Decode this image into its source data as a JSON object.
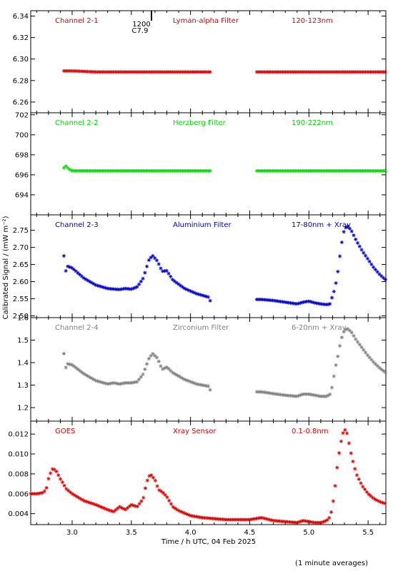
{
  "chart_data": {
    "type": "scatter",
    "xlabel": "Time / h UTC, 04 Feb 2025",
    "ylabel": "Calibrated Signal / (mW m⁻²)",
    "note": "(1 minute averages)",
    "xlim": [
      2.65,
      5.65
    ],
    "xticks": [
      3.0,
      3.5,
      4.0,
      4.5,
      5.0,
      5.5
    ],
    "xtick_labels": [
      "3.0",
      "3.5",
      "4.0",
      "4.5",
      "5.0",
      "5.5"
    ],
    "marker": "*",
    "flare_annotation": {
      "x": 3.67,
      "time": "1200",
      "class": "C7.9"
    },
    "panels": [
      {
        "channel": "Channel 2-1",
        "filter": "Lyman-alpha Filter",
        "band": "120-123nm",
        "color": "#dd0000",
        "ylim": [
          6.25,
          6.345
        ],
        "yticks": [
          6.26,
          6.28,
          6.3,
          6.32,
          6.34
        ],
        "ytick_labels": [
          "6.26",
          "6.28",
          "6.30",
          "6.32",
          "6.34"
        ],
        "segments": [
          {
            "x": [
              2.93,
              3.0,
              3.2,
              3.5,
              3.8,
              4.0,
              4.18
            ],
            "y": [
              6.289,
              6.289,
              6.288,
              6.288,
              6.288,
              6.288,
              6.288
            ]
          },
          {
            "x": [
              4.56,
              4.8,
              5.0,
              5.2,
              5.4,
              5.65
            ],
            "y": [
              6.288,
              6.288,
              6.288,
              6.288,
              6.288,
              6.288
            ]
          }
        ]
      },
      {
        "channel": "Channel 2-2",
        "filter": "Herzberg Filter",
        "band": "190-222nm",
        "color": "#00dd00",
        "ylim": [
          692.0,
          702.2
        ],
        "yticks": [
          694,
          696,
          698,
          700,
          702
        ],
        "ytick_labels": [
          "694",
          "696",
          "698",
          "700",
          "702"
        ],
        "segments": [
          {
            "x": [
              2.93,
              2.95,
              2.97,
              3.0,
              3.5,
              4.0,
              4.18
            ],
            "y": [
              696.7,
              696.9,
              696.6,
              696.4,
              696.4,
              696.4,
              696.4
            ]
          },
          {
            "x": [
              4.56,
              5.0,
              5.3,
              5.65
            ],
            "y": [
              696.4,
              696.4,
              696.4,
              696.4
            ]
          }
        ]
      },
      {
        "channel": "Channel 2-3",
        "filter": "Aluminium Filter",
        "band": "17-80nm + Xray",
        "color": "#0000cc",
        "ylim": [
          2.495,
          2.795
        ],
        "yticks": [
          2.5,
          2.55,
          2.6,
          2.65,
          2.7,
          2.75
        ],
        "ytick_labels": [
          "2.50",
          "2.55",
          "2.60",
          "2.65",
          "2.70",
          "2.75"
        ],
        "segments": [
          {
            "x": [
              2.93,
              2.94,
              2.96,
              3.0,
              3.1,
              3.2,
              3.3,
              3.36,
              3.4,
              3.45,
              3.5,
              3.55,
              3.6,
              3.65,
              3.68,
              3.72,
              3.76,
              3.8,
              3.85,
              3.95,
              4.05,
              4.15,
              4.18
            ],
            "y": [
              2.675,
              2.625,
              2.645,
              2.64,
              2.61,
              2.59,
              2.58,
              2.578,
              2.577,
              2.58,
              2.578,
              2.585,
              2.61,
              2.665,
              2.676,
              2.66,
              2.63,
              2.632,
              2.605,
              2.58,
              2.565,
              2.555,
              2.535
            ]
          },
          {
            "x": [
              4.56,
              4.6,
              4.7,
              4.8,
              4.9,
              4.95,
              5.0,
              5.05,
              5.1,
              5.15,
              5.18,
              5.2,
              5.22,
              5.25,
              5.27,
              5.3,
              5.33,
              5.36,
              5.4,
              5.45,
              5.5,
              5.55,
              5.6,
              5.65
            ],
            "y": [
              2.548,
              2.548,
              2.545,
              2.54,
              2.535,
              2.54,
              2.543,
              2.538,
              2.535,
              2.533,
              2.535,
              2.56,
              2.58,
              2.64,
              2.7,
              2.755,
              2.762,
              2.748,
              2.72,
              2.69,
              2.665,
              2.64,
              2.62,
              2.605
            ]
          }
        ]
      },
      {
        "channel": "Channel 2-4",
        "filter": "Zirconium Filter",
        "band": "6-20nm + Xray",
        "color": "#808080",
        "ylim": [
          1.14,
          1.6
        ],
        "yticks": [
          1.2,
          1.3,
          1.4,
          1.5,
          1.6
        ],
        "ytick_labels": [
          "1.2",
          "1.3",
          "1.4",
          "1.5",
          "1.6"
        ],
        "segments": [
          {
            "x": [
              2.93,
              2.94,
              2.96,
              3.0,
              3.1,
              3.2,
              3.3,
              3.35,
              3.4,
              3.45,
              3.5,
              3.55,
              3.6,
              3.65,
              3.68,
              3.72,
              3.76,
              3.8,
              3.85,
              3.95,
              4.05,
              4.15,
              4.18
            ],
            "y": [
              1.44,
              1.37,
              1.395,
              1.39,
              1.35,
              1.32,
              1.305,
              1.31,
              1.305,
              1.31,
              1.31,
              1.315,
              1.35,
              1.42,
              1.44,
              1.42,
              1.37,
              1.38,
              1.355,
              1.325,
              1.305,
              1.295,
              1.265
            ]
          },
          {
            "x": [
              4.56,
              4.6,
              4.7,
              4.8,
              4.9,
              4.95,
              5.0,
              5.05,
              5.1,
              5.15,
              5.18,
              5.2,
              5.22,
              5.25,
              5.27,
              5.3,
              5.33,
              5.36,
              5.4,
              5.45,
              5.5,
              5.55,
              5.6,
              5.65
            ],
            "y": [
              1.27,
              1.27,
              1.262,
              1.255,
              1.25,
              1.26,
              1.26,
              1.255,
              1.25,
              1.25,
              1.26,
              1.3,
              1.37,
              1.44,
              1.5,
              1.545,
              1.55,
              1.535,
              1.5,
              1.465,
              1.43,
              1.4,
              1.375,
              1.355
            ]
          }
        ]
      },
      {
        "channel": "GOES",
        "filter": "Xray Sensor",
        "band": "0.1-0.8nm",
        "color": "#dd0000",
        "ylim": [
          0.0029,
          0.0133
        ],
        "yticks": [
          0.004,
          0.006,
          0.008,
          0.01,
          0.012
        ],
        "ytick_labels": [
          "0.004",
          "0.006",
          "0.008",
          "0.010",
          "0.012"
        ],
        "segments": [
          {
            "x": [
              2.65,
              2.7,
              2.75,
              2.78,
              2.8,
              2.83,
              2.86,
              2.9,
              2.95,
              3.0,
              3.1,
              3.2,
              3.3,
              3.35,
              3.4,
              3.45,
              3.5,
              3.55,
              3.6,
              3.63,
              3.66,
              3.7,
              3.73,
              3.76,
              3.8,
              3.85,
              3.9,
              4.0,
              4.1,
              4.2,
              4.3,
              4.4,
              4.5,
              4.55,
              4.6,
              4.7,
              4.8,
              4.9,
              4.95,
              5.0,
              5.05,
              5.1,
              5.15,
              5.18,
              5.2,
              5.22,
              5.24,
              5.26,
              5.28,
              5.3,
              5.32,
              5.34,
              5.36,
              5.4,
              5.45,
              5.5,
              5.55,
              5.6,
              5.65
            ],
            "y": [
              0.006,
              0.006,
              0.0061,
              0.0064,
              0.0075,
              0.0085,
              0.0084,
              0.0075,
              0.0065,
              0.006,
              0.0053,
              0.0049,
              0.0044,
              0.0042,
              0.0047,
              0.0044,
              0.0049,
              0.0047,
              0.0055,
              0.0072,
              0.008,
              0.0074,
              0.0064,
              0.0062,
              0.0057,
              0.0047,
              0.0043,
              0.0038,
              0.0036,
              0.0035,
              0.0034,
              0.0034,
              0.0034,
              0.0035,
              0.0036,
              0.0033,
              0.0032,
              0.0031,
              0.0033,
              0.0032,
              0.0031,
              0.0031,
              0.0033,
              0.0037,
              0.0048,
              0.0066,
              0.0088,
              0.0105,
              0.0118,
              0.0125,
              0.0122,
              0.011,
              0.0098,
              0.008,
              0.0068,
              0.006,
              0.0055,
              0.0052,
              0.005
            ]
          }
        ]
      }
    ]
  }
}
